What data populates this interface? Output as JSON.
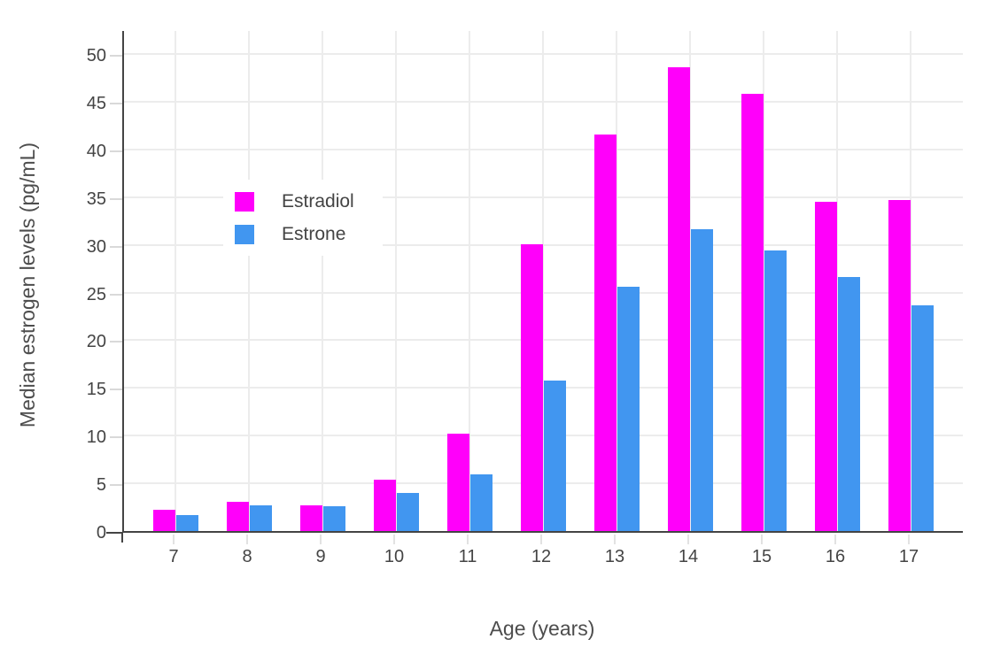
{
  "chart_data": {
    "type": "bar",
    "title": "",
    "xlabel": "Age (years)",
    "ylabel": "Median estrogen levels (pg/mL)",
    "categories": [
      "7",
      "8",
      "9",
      "10",
      "11",
      "12",
      "13",
      "14",
      "15",
      "16",
      "17"
    ],
    "series": [
      {
        "name": "Estradiol",
        "color": "#ff00fa",
        "values": [
          2.2,
          3.1,
          2.7,
          5.4,
          10.2,
          30.1,
          41.6,
          48.6,
          45.8,
          34.5,
          34.7
        ]
      },
      {
        "name": "Estrone",
        "color": "#4196f0",
        "values": [
          1.7,
          2.7,
          2.6,
          4.0,
          5.9,
          15.8,
          25.6,
          31.6,
          29.4,
          26.6,
          23.7
        ]
      }
    ],
    "ylim": [
      0,
      52.6
    ],
    "yticks": [
      0,
      5,
      10,
      15,
      20,
      25,
      30,
      35,
      40,
      45,
      50
    ],
    "grid": true,
    "legend_position": "inside-top-left"
  },
  "colors": {
    "background": "#ffffff",
    "grid": "#ececec",
    "axis_line": "#444444",
    "tick_text": "#444444",
    "title_text": "#4d4d4d"
  }
}
